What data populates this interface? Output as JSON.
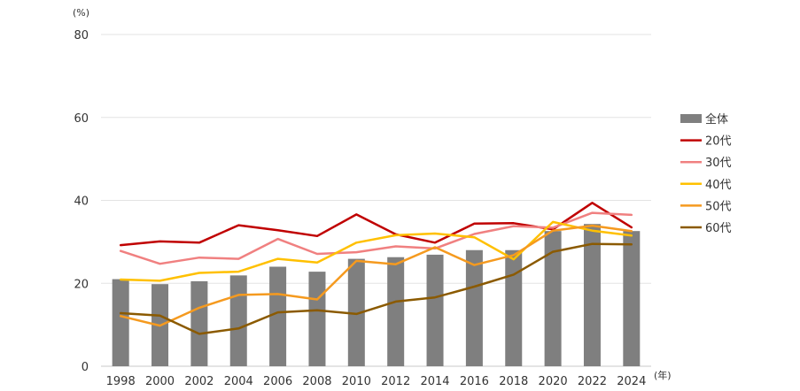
{
  "chart_data": {
    "type": "bar+line",
    "title": "",
    "y_unit_label": "(%)",
    "x_unit_label": "(年)",
    "ylim": [
      0,
      80
    ],
    "y_ticks": [
      0,
      20,
      40,
      60,
      80
    ],
    "grid": true,
    "legend_position": "right",
    "categories": [
      "1998",
      "2000",
      "2002",
      "2004",
      "2006",
      "2008",
      "2010",
      "2012",
      "2014",
      "2016",
      "2018",
      "2020",
      "2022",
      "2024"
    ],
    "series": [
      {
        "name": "全体",
        "kind": "bar",
        "color": "#7f7f7f",
        "values": [
          21.0,
          19.8,
          20.5,
          21.9,
          24.0,
          22.8,
          25.9,
          26.3,
          26.9,
          28.0,
          28.0,
          32.6,
          34.3,
          32.6
        ]
      },
      {
        "name": "20代",
        "kind": "line",
        "color": "#c00000",
        "values": [
          29.2,
          30.1,
          29.8,
          34.0,
          32.8,
          31.4,
          36.6,
          31.8,
          29.8,
          34.4,
          34.5,
          33.0,
          39.4,
          33.5
        ]
      },
      {
        "name": "30代",
        "kind": "line",
        "color": "#f08080",
        "values": [
          27.8,
          24.7,
          26.2,
          25.9,
          30.7,
          27.1,
          27.5,
          28.9,
          28.4,
          31.9,
          33.8,
          33.4,
          37.0,
          36.5
        ]
      },
      {
        "name": "40代",
        "kind": "line",
        "color": "#ffc000",
        "values": [
          20.9,
          20.6,
          22.5,
          22.8,
          25.9,
          25.0,
          29.8,
          31.6,
          32.0,
          31.1,
          25.8,
          34.8,
          32.7,
          31.5
        ]
      },
      {
        "name": "50代",
        "kind": "line",
        "color": "#f59a1f",
        "values": [
          12.1,
          9.8,
          14.1,
          17.2,
          17.4,
          16.1,
          25.4,
          24.6,
          28.7,
          24.4,
          26.8,
          32.7,
          33.9,
          32.6
        ]
      },
      {
        "name": "60代",
        "kind": "line",
        "color": "#8b5a00",
        "values": [
          12.8,
          12.2,
          7.8,
          9.1,
          13.0,
          13.5,
          12.6,
          15.6,
          16.6,
          19.2,
          22.1,
          27.6,
          29.5,
          29.4
        ]
      }
    ]
  }
}
